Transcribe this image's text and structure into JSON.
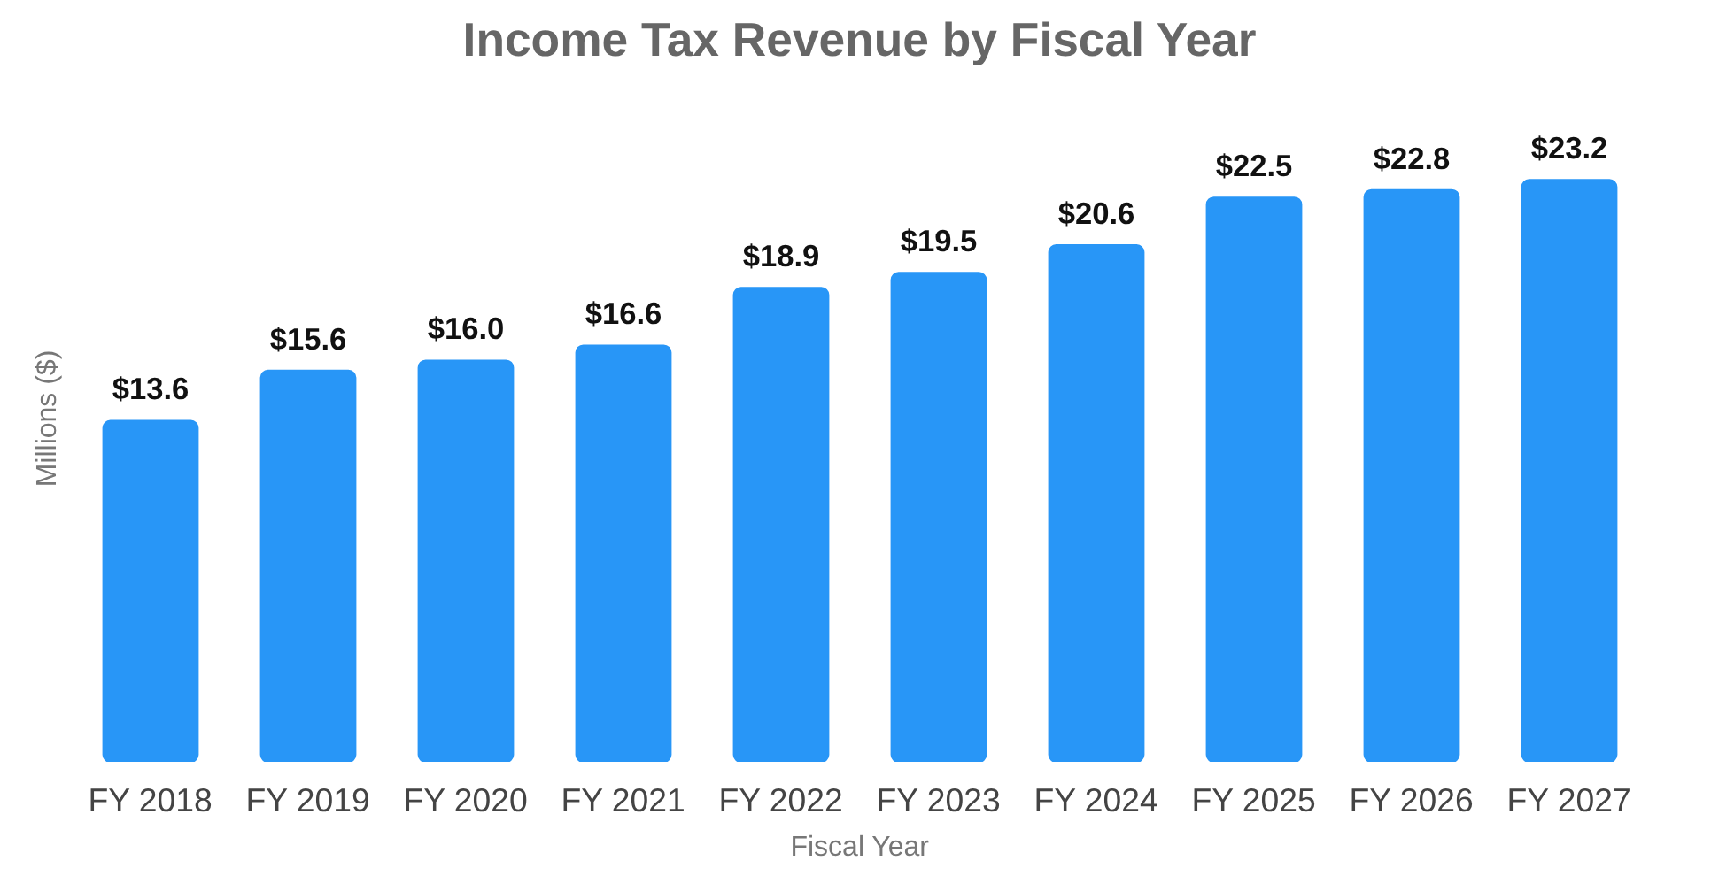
{
  "chart_data": {
    "type": "bar",
    "title": "Income Tax Revenue by Fiscal Year",
    "xlabel": "Fiscal Year",
    "ylabel": "Millions ($)",
    "categories": [
      "FY 2018",
      "FY 2019",
      "FY 2020",
      "FY 2021",
      "FY 2022",
      "FY 2023",
      "FY 2024",
      "FY 2025",
      "FY 2026",
      "FY 2027"
    ],
    "values": [
      13.6,
      15.6,
      16.0,
      16.6,
      18.9,
      19.5,
      20.6,
      22.5,
      22.8,
      23.2
    ],
    "value_labels": [
      "$13.6",
      "$15.6",
      "$16.0",
      "$16.6",
      "$18.9",
      "$19.5",
      "$20.6",
      "$22.5",
      "$22.8",
      "$23.2"
    ],
    "color": "#2896f7"
  }
}
